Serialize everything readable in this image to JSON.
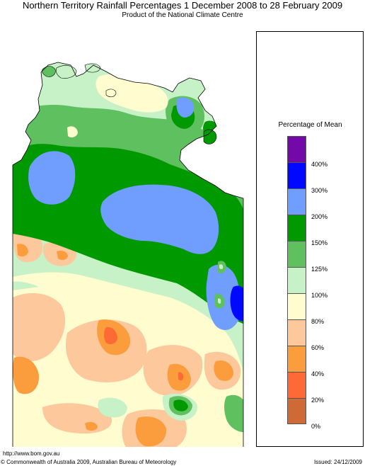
{
  "header": {
    "title": "Northern Territory Rainfall Percentages 1 December 2008 to 28 February 2009",
    "subtitle": "Product of the National Climate Centre"
  },
  "legend": {
    "title": "Percentage of Mean",
    "classes": [
      {
        "label": "",
        "color": "#7209a8"
      },
      {
        "label": "400%",
        "color": "#0008ff"
      },
      {
        "label": "300%",
        "color": "#6f9eff"
      },
      {
        "label": "200%",
        "color": "#009a00"
      },
      {
        "label": "150%",
        "color": "#5fc05f"
      },
      {
        "label": "125%",
        "color": "#c7f2c7"
      },
      {
        "label": "100%",
        "color": "#fffcd0"
      },
      {
        "label": "80%",
        "color": "#fcc89c"
      },
      {
        "label": "60%",
        "color": "#fb9d3c"
      },
      {
        "label": "40%",
        "color": "#fd6a36"
      },
      {
        "label": "20%",
        "color": "#cf6a36"
      },
      {
        "label": "0%",
        "color": ""
      }
    ]
  },
  "footer": {
    "url": "http://www.bom.gov.au",
    "copyright": "© Commonwealth of Australia 2009, Australian Bureau of Meteorology",
    "issued": "Issued: 24/12/2009"
  }
}
